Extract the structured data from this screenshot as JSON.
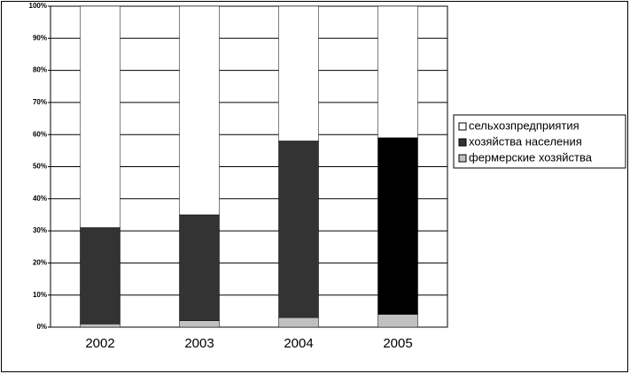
{
  "chart_data": {
    "type": "stacked_bar_100",
    "categories": [
      "2002",
      "2003",
      "2004",
      "2005"
    ],
    "series": [
      {
        "name": "фермерские хозяйства",
        "color": "#c0c0c0",
        "values": [
          1,
          2,
          3,
          4
        ]
      },
      {
        "name": "хозяйства населения",
        "color": "#333333",
        "colors": [
          "#333333",
          "#333333",
          "#333333",
          "#000000"
        ],
        "values": [
          30,
          33,
          55,
          55
        ]
      },
      {
        "name": "сельхозпредприятия",
        "color": "#ffffff",
        "values": [
          69,
          65,
          42,
          41
        ]
      }
    ],
    "ylim": [
      0,
      100
    ],
    "yticks": [
      {
        "value": 0,
        "label": "0%"
      },
      {
        "value": 10,
        "label": "10%"
      },
      {
        "value": 20,
        "label": "20%"
      },
      {
        "value": 30,
        "label": "30%"
      },
      {
        "value": 40,
        "label": "40%"
      },
      {
        "value": 50,
        "label": "50%"
      },
      {
        "value": 60,
        "label": "60%"
      },
      {
        "value": 70,
        "label": "70%"
      },
      {
        "value": 80,
        "label": "80%"
      },
      {
        "value": 90,
        "label": "90%"
      },
      {
        "value": 100,
        "label": "100%"
      }
    ],
    "grid": true,
    "legend": "right"
  }
}
